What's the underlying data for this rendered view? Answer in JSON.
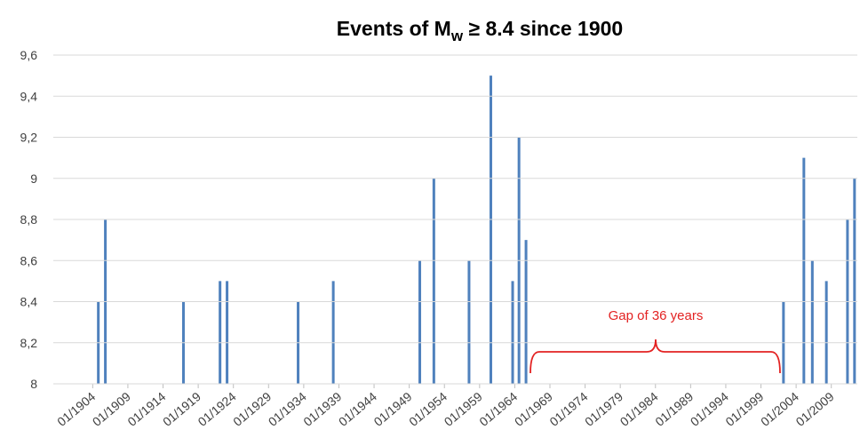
{
  "chart_data": {
    "type": "bar",
    "title": [
      "Events of M",
      "w",
      " ≥ 8.4 since 1900"
    ],
    "annotation": "Gap of 36 years",
    "color": "#4f81bd",
    "x": [
      1904.8,
      1905.8,
      1916.9,
      1922.1,
      1923.1,
      1933.2,
      1938.2,
      1950.5,
      1952.5,
      1957.5,
      1960.6,
      1963.7,
      1964.6,
      1965.6,
      2002.2,
      2005.1,
      2006.3,
      2008.3,
      2011.3,
      2012.3
    ],
    "values": [
      8.4,
      8.8,
      8.4,
      8.5,
      8.5,
      8.4,
      8.5,
      8.6,
      9.0,
      8.6,
      9.5,
      8.5,
      9.2,
      8.7,
      8.4,
      9.1,
      8.6,
      8.5,
      8.8,
      9.0
    ],
    "xlim": [
      1898.4,
      2012.7
    ],
    "xticks": [
      {
        "value": 1904,
        "label": "01/1904"
      },
      {
        "value": 1909,
        "label": "01/1909"
      },
      {
        "value": 1914,
        "label": "01/1914"
      },
      {
        "value": 1919,
        "label": "01/1919"
      },
      {
        "value": 1924,
        "label": "01/1924"
      },
      {
        "value": 1929,
        "label": "01/1929"
      },
      {
        "value": 1934,
        "label": "01/1934"
      },
      {
        "value": 1939,
        "label": "01/1939"
      },
      {
        "value": 1944,
        "label": "01/1944"
      },
      {
        "value": 1949,
        "label": "01/1949"
      },
      {
        "value": 1954,
        "label": "01/1954"
      },
      {
        "value": 1959,
        "label": "01/1959"
      },
      {
        "value": 1964,
        "label": "01/1964"
      },
      {
        "value": 1969,
        "label": "01/1969"
      },
      {
        "value": 1974,
        "label": "01/1974"
      },
      {
        "value": 1979,
        "label": "01/1979"
      },
      {
        "value": 1984,
        "label": "01/1984"
      },
      {
        "value": 1989,
        "label": "01/1989"
      },
      {
        "value": 1994,
        "label": "01/1994"
      },
      {
        "value": 1999,
        "label": "01/1999"
      },
      {
        "value": 2004,
        "label": "01/2004"
      },
      {
        "value": 2009,
        "label": "01/2009"
      }
    ],
    "ylim": [
      8,
      9.6
    ],
    "yticks": [
      8,
      {
        "value": 8.2,
        "label": "8,2"
      },
      {
        "value": 8.4,
        "label": "8,4"
      },
      {
        "value": 8.6,
        "label": "8,6"
      },
      {
        "value": 8.8,
        "label": "8,8"
      },
      9,
      {
        "value": 9.2,
        "label": "9,2"
      },
      {
        "value": 9.4,
        "label": "9,4"
      },
      {
        "value": 9.6,
        "label": "9,6"
      }
    ],
    "grid": true
  }
}
